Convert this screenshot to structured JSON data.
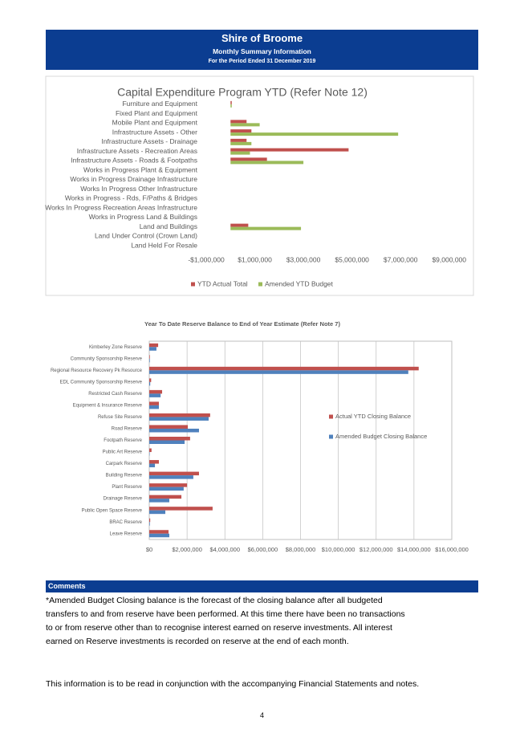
{
  "header": {
    "title": "Shire of Broome",
    "subtitle": "Monthly Summary Information",
    "period": "For the Period Ended 31 December 2019"
  },
  "chart_data": [
    {
      "type": "hbar",
      "title": "Capital Expenditure Program YTD (Refer Note 12)",
      "categories": [
        "Furniture and Equipment",
        "Fixed Plant and Equipment",
        "Mobile Plant and Equipment",
        "Infrastructure Assets - Other",
        "Infrastructure Assets - Drainage",
        "Infrastructure Assets - Recreation Areas",
        "Infrastructure Assets - Roads & Footpaths",
        "Works in Progress Plant & Equipment",
        "Works in Progress Drainage Infrastructure",
        "Works In Progress Other Infrastructure",
        "Works in Progress - Rds, F/Paths & Bridges",
        "Works In Progress Recreation Areas Infrastructure",
        "Works in Progress Land & Buildings",
        "Land and Buildings",
        "Land Under Control (Crown Land)",
        "Land Held For Resale"
      ],
      "series": [
        {
          "name": "YTD Actual Total",
          "color": "#c0504d",
          "values": [
            50000,
            0,
            660000,
            860000,
            660000,
            4860000,
            1500000,
            0,
            0,
            0,
            0,
            0,
            0,
            730000,
            0,
            0
          ]
        },
        {
          "name": "Amended YTD Budget",
          "color": "#9bbb59",
          "values": [
            50000,
            0,
            1200000,
            6900000,
            860000,
            800000,
            3000000,
            0,
            0,
            0,
            0,
            0,
            0,
            2900000,
            0,
            0
          ]
        }
      ],
      "xlim": [
        -1000000,
        10000000
      ],
      "xticks": [
        {
          "value": -1000000,
          "label": "-$1,000,000"
        },
        {
          "value": 1000000,
          "label": "$1,000,000"
        },
        {
          "value": 3000000,
          "label": "$3,000,000"
        },
        {
          "value": 5000000,
          "label": "$5,000,000"
        },
        {
          "value": 7000000,
          "label": "$7,000,000"
        },
        {
          "value": 9000000,
          "label": "$9,000,000"
        }
      ],
      "grid": false,
      "legend": "bottom"
    },
    {
      "type": "hbar",
      "title": "Year To Date Reserve Balance to End of Year Estimate (Refer Note 7)",
      "categories": [
        "Kimberley Zone Reserve",
        "Community Sponsorship Reserve",
        "Regional Resource Recovery Pk Resource",
        "EDL Community Sponsorship Reserve",
        "Restricted Cash Reserve",
        "Equipment & Insurance Reserve",
        "Refuse Site Reserve",
        "Road Reserve",
        "Footpath Reserve",
        "Public Art Reserve",
        "Carpark Reserve",
        "Building Reserve",
        "Plant Reserve",
        "Drainage Reserve",
        "Public Open Space Reserve",
        "BRAC  Reserve",
        "Leave Reserve"
      ],
      "series": [
        {
          "name": "Actual YTD Closing Balance",
          "color": "#c0504d",
          "values": [
            470000,
            30000,
            14250000,
            100000,
            680000,
            510000,
            3220000,
            2040000,
            2160000,
            120000,
            510000,
            2630000,
            2000000,
            1700000,
            3350000,
            50000,
            1020000
          ]
        },
        {
          "name": "Amended Budget Closing Balance",
          "color": "#4f81bd",
          "values": [
            380000,
            30000,
            13700000,
            50000,
            600000,
            510000,
            3140000,
            2630000,
            1870000,
            20000,
            300000,
            2330000,
            1820000,
            1060000,
            850000,
            30000,
            1060000
          ]
        }
      ],
      "xlim": [
        0,
        16000000
      ],
      "xticks": [
        {
          "value": 0,
          "label": "$0"
        },
        {
          "value": 2000000,
          "label": "$2,000,000"
        },
        {
          "value": 4000000,
          "label": "$4,000,000"
        },
        {
          "value": 6000000,
          "label": "$6,000,000"
        },
        {
          "value": 8000000,
          "label": "$8,000,000"
        },
        {
          "value": 10000000,
          "label": "$10,000,000"
        },
        {
          "value": 12000000,
          "label": "$12,000,000"
        },
        {
          "value": 14000000,
          "label": "$14,000,000"
        },
        {
          "value": 16000000,
          "label": "$16,000,000"
        }
      ],
      "grid": true,
      "legend": "right"
    }
  ],
  "comments": {
    "heading": "Comments",
    "text": "*Amended Budget Closing balance is the forecast of the closing balance after all budgeted transfers to and from reserve have been performed. At this time there have been no transactions to or from reserve other than to recognise interest earned on reserve investments. All interest earned on Reserve investments is recorded on reserve at the end of each month."
  },
  "footer": {
    "note": "This information is to be read in conjunction with the accompanying Financial Statements and notes.",
    "page": "4"
  }
}
